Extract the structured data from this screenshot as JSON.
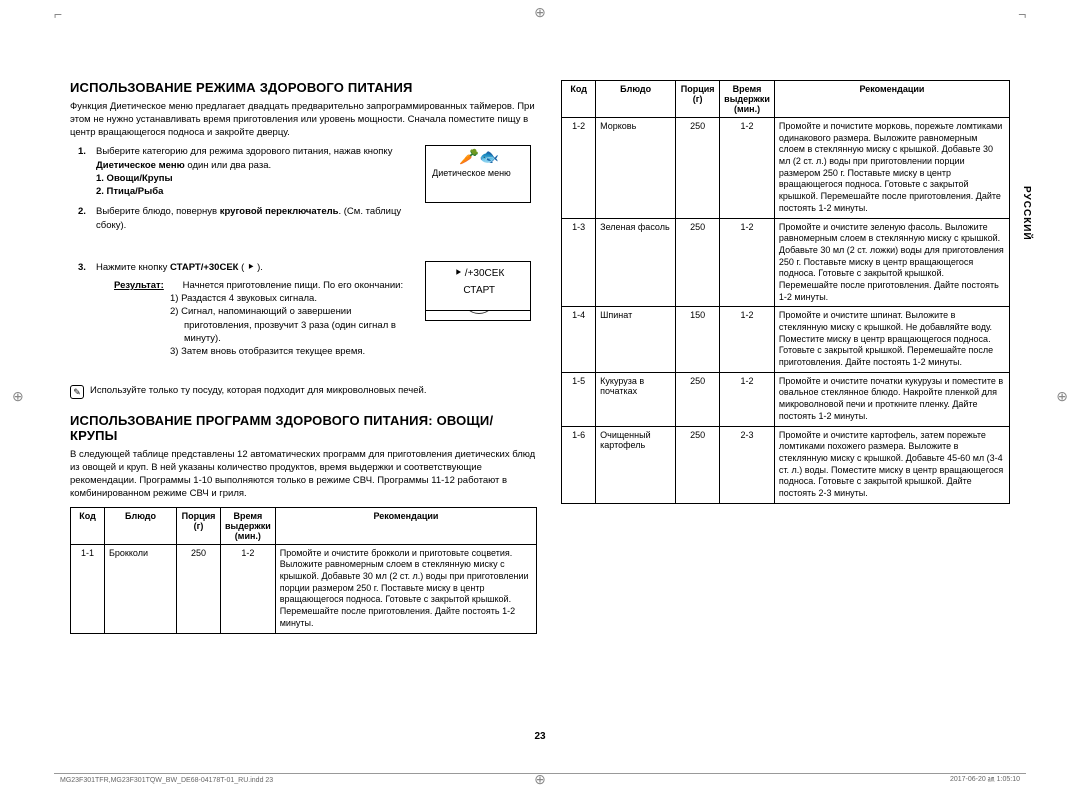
{
  "cropmarks": {
    "corner": "⌐",
    "target": "⊕"
  },
  "side_tab": "РУССКИЙ",
  "page_number": "23",
  "footer": {
    "left": "MG23F301TFR,MG23F301TQW_BW_DE68-04178T-01_RU.indd   23",
    "right": "2017-06-20   ㏂ 1:05:10"
  },
  "left": {
    "h1": "ИСПОЛЬЗОВАНИЕ РЕЖИМА ЗДОРОВОГО ПИТАНИЯ",
    "intro": "Функция Диетическое меню предлагает двадцать предварительно запрограммированных таймеров. При этом не нужно устанавливать время приготовления или уровень мощности. Сначала поместите пищу в центр вращающегося подноса и закройте дверцу.",
    "step1_a": "Выберите категорию для режима здорового питания, нажав кнопку ",
    "step1_bold": "Диетическое меню",
    "step1_b": " один или два раза.",
    "step1_opt1": "1. Овощи/Крупы",
    "step1_opt2": "2. Птица/Рыба",
    "box1_caption": "Диетическое меню",
    "step2_a": "Выберите блюдо, повернув ",
    "step2_bold": "круговой переключатель",
    "step2_b": ". (См. таблицу сбоку).",
    "step3_a": "Нажмите кнопку ",
    "step3_bold": "СТАРТ/+30СЕК",
    "step3_b": " ( ⯈ ).",
    "result_label": "Результат:",
    "result_txt": "Начнется приготовление пищи. По его окончании:",
    "sub1": "1)  Раздастся 4 звуковых сигнала.",
    "sub2": "2)  Сигнал, напоминающий о завершении приготовления, прозвучит 3 раза (один сигнал в минуту).",
    "sub3": "3)  Затем вновь отобразится текущее время.",
    "box3_line1": "⯈ /+30СЕК",
    "box3_line2": "СТАРТ",
    "note": "Используйте только ту посуду, которая подходит для микроволновых печей.",
    "h2": "ИСПОЛЬЗОВАНИЕ ПРОГРАММ ЗДОРОВОГО ПИТАНИЯ: ОВОЩИ/КРУПЫ",
    "intro2": "В следующей таблице представлены 12 автоматических программ для приготовления диетических блюд из овощей и круп. В ней указаны количество продуктов, время выдержки и соответствующие рекомендации. Программы 1-10 выполняются только в режиме СВЧ. Программы 11-12 работают в комбинированном режиме СВЧ и гриля."
  },
  "table": {
    "headers": {
      "code": "Код",
      "dish": "Блюдо",
      "portion": "Порция (г)",
      "time": "Время выдержки (мин.)",
      "rec": "Рекомендации"
    },
    "rows_left": [
      {
        "code": "1-1",
        "dish": "Брокколи",
        "portion": "250",
        "time": "1-2",
        "rec": "Промойте и очистите брокколи и приготовьте соцветия. Выложите равномерным слоем в стеклянную миску с крышкой. Добавьте 30 мл (2 ст. л.) воды при приготовлении порции размером 250 г. Поставьте миску в центр вращающегося подноса. Готовьте с закрытой крышкой. Перемешайте после приготовления. Дайте постоять 1-2 минуты."
      }
    ],
    "rows_right": [
      {
        "code": "1-2",
        "dish": "Морковь",
        "portion": "250",
        "time": "1-2",
        "rec": "Промойте и почистите морковь, порежьте ломтиками одинакового размера. Выложите равномерным слоем в стеклянную миску с крышкой. Добавьте 30 мл (2 ст. л.) воды при приготовлении порции размером 250 г. Поставьте миску в центр вращающегося подноса. Готовьте с закрытой крышкой. Перемешайте после приготовления. Дайте постоять 1-2 минуты."
      },
      {
        "code": "1-3",
        "dish": "Зеленая фасоль",
        "portion": "250",
        "time": "1-2",
        "rec": "Промойте и очистите зеленую фасоль. Выложите равномерным слоем в стеклянную миску с крышкой. Добавьте 30 мл (2 ст. ложки) воды для приготовления 250 г. Поставьте миску в центр вращающегося подноса. Готовьте с закрытой крышкой. Перемешайте после приготовления. Дайте постоять 1-2 минуты."
      },
      {
        "code": "1-4",
        "dish": "Шпинат",
        "portion": "150",
        "time": "1-2",
        "rec": "Промойте и очистите шпинат. Выложите в стеклянную миску с крышкой. Не добавляйте воду. Поместите миску в центр вращающегося подноса. Готовьте с закрытой крышкой. Перемешайте после приготовления. Дайте постоять 1-2 минуты."
      },
      {
        "code": "1-5",
        "dish": "Кукуруза в початках",
        "portion": "250",
        "time": "1-2",
        "rec": "Промойте и очистите початки кукурузы и поместите в овальное стеклянное блюдо. Накройте пленкой для микроволновой печи и проткните пленку. Дайте постоять 1-2 минуты."
      },
      {
        "code": "1-6",
        "dish": "Очищенный картофель",
        "portion": "250",
        "time": "2-3",
        "rec": "Промойте и очистите картофель, затем порежьте ломтиками похожего размера. Выложите в стеклянную миску с крышкой. Добавьте 45-60 мл (3-4 ст. л.) воды. Поместите миску в центр вращающегося подноса. Готовьте с закрытой крышкой. Дайте постоять 2-3 минуты."
      }
    ]
  }
}
